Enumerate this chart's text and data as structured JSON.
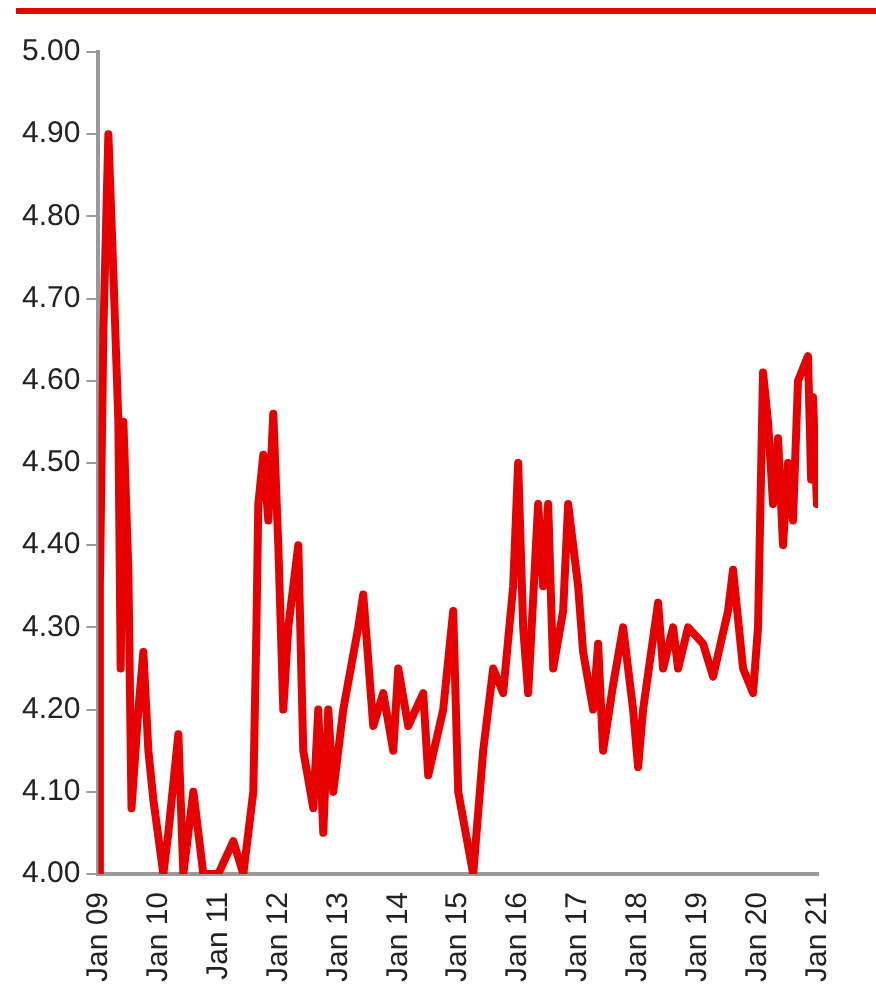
{
  "chart_data": {
    "type": "line",
    "x": [
      "2009-01",
      "2009-01-10",
      "2009-02",
      "2009-03",
      "2009-04",
      "2009-05",
      "2009-05-15",
      "2009-06",
      "2009-07",
      "2009-07-20",
      "2009-09",
      "2009-10",
      "2009-11",
      "2009-12",
      "2010-02",
      "2010-03",
      "2010-05",
      "2010-06",
      "2010-08",
      "2010-10",
      "2011-01",
      "2011-04",
      "2011-06",
      "2011-08",
      "2011-08-20",
      "2011-09",
      "2011-10",
      "2011-11",
      "2011-12",
      "2012-01",
      "2012-02",
      "2012-03",
      "2012-05",
      "2012-06",
      "2012-08",
      "2012-09",
      "2012-10",
      "2012-11",
      "2012-12",
      "2013-02",
      "2013-05",
      "2013-06",
      "2013-08",
      "2013-10",
      "2013-12",
      "2014-01",
      "2014-03",
      "2014-06",
      "2014-07",
      "2014-10",
      "2014-12",
      "2015-01",
      "2015-04",
      "2015-06",
      "2015-08",
      "2015-10",
      "2015-12",
      "2016-01",
      "2016-02",
      "2016-03",
      "2016-05",
      "2016-06",
      "2016-07",
      "2016-08",
      "2016-10",
      "2016-11",
      "2017-01",
      "2017-02",
      "2017-04",
      "2017-05",
      "2017-06",
      "2017-08",
      "2017-10",
      "2017-11",
      "2017-12",
      "2018-01",
      "2018-02",
      "2018-05",
      "2018-06",
      "2018-08",
      "2018-09",
      "2018-11",
      "2019-02",
      "2019-04",
      "2019-07",
      "2019-08",
      "2019-10",
      "2019-12",
      "2020-01",
      "2020-02",
      "2020-03",
      "2020-04",
      "2020-05",
      "2020-06",
      "2020-07",
      "2020-08",
      "2020-09",
      "2020-11",
      "2020-11-20",
      "2020-12",
      "2020-12-25"
    ],
    "series": [
      {
        "color": "#e60000",
        "values": [
          4.0,
          4.35,
          4.66,
          4.9,
          4.73,
          4.55,
          4.25,
          4.55,
          4.37,
          4.08,
          4.2,
          4.27,
          4.15,
          4.09,
          4.0,
          4.05,
          4.17,
          4.0,
          4.1,
          4.0,
          4.0,
          4.04,
          4.0,
          4.1,
          4.3,
          4.45,
          4.51,
          4.43,
          4.56,
          4.4,
          4.2,
          4.3,
          4.4,
          4.15,
          4.08,
          4.2,
          4.05,
          4.2,
          4.1,
          4.2,
          4.3,
          4.34,
          4.18,
          4.22,
          4.15,
          4.25,
          4.18,
          4.22,
          4.12,
          4.2,
          4.32,
          4.1,
          4.0,
          4.15,
          4.25,
          4.22,
          4.35,
          4.5,
          4.3,
          4.22,
          4.45,
          4.35,
          4.45,
          4.25,
          4.32,
          4.45,
          4.35,
          4.27,
          4.2,
          4.28,
          4.15,
          4.23,
          4.3,
          4.25,
          4.2,
          4.13,
          4.2,
          4.33,
          4.25,
          4.3,
          4.25,
          4.3,
          4.28,
          4.24,
          4.32,
          4.37,
          4.25,
          4.22,
          4.3,
          4.61,
          4.55,
          4.45,
          4.53,
          4.4,
          4.5,
          4.43,
          4.6,
          4.63,
          4.48,
          4.58,
          4.45
        ]
      }
    ],
    "xlim": [
      "2009-01",
      "2021-01"
    ],
    "xticks": [
      {
        "value": "2009-01",
        "label": "Jan 09"
      },
      {
        "value": "2010-01",
        "label": "Jan 10"
      },
      {
        "value": "2011-01",
        "label": "Jan 11"
      },
      {
        "value": "2012-01",
        "label": "Jan 12"
      },
      {
        "value": "2013-01",
        "label": "Jan 13"
      },
      {
        "value": "2014-01",
        "label": "Jan 14"
      },
      {
        "value": "2015-01",
        "label": "Jan 15"
      },
      {
        "value": "2016-01",
        "label": "Jan 16"
      },
      {
        "value": "2017-01",
        "label": "Jan 17"
      },
      {
        "value": "2018-01",
        "label": "Jan 18"
      },
      {
        "value": "2019-01",
        "label": "Jan 19"
      },
      {
        "value": "2020-01",
        "label": "Jan 20"
      },
      {
        "value": "2021-01",
        "label": "Jan 21"
      }
    ],
    "ylim": [
      4.0,
      5.0
    ],
    "yticks": [
      {
        "value": 4.0,
        "label": "4.00"
      },
      {
        "value": 4.1,
        "label": "4.10"
      },
      {
        "value": 4.2,
        "label": "4.20"
      },
      {
        "value": 4.3,
        "label": "4.30"
      },
      {
        "value": 4.4,
        "label": "4.40"
      },
      {
        "value": 4.5,
        "label": "4.50"
      },
      {
        "value": 4.6,
        "label": "4.60"
      },
      {
        "value": 4.7,
        "label": "4.70"
      },
      {
        "value": 4.8,
        "label": "4.80"
      },
      {
        "value": 4.9,
        "label": "4.90"
      },
      {
        "value": 5.0,
        "label": "5.00"
      }
    ]
  }
}
